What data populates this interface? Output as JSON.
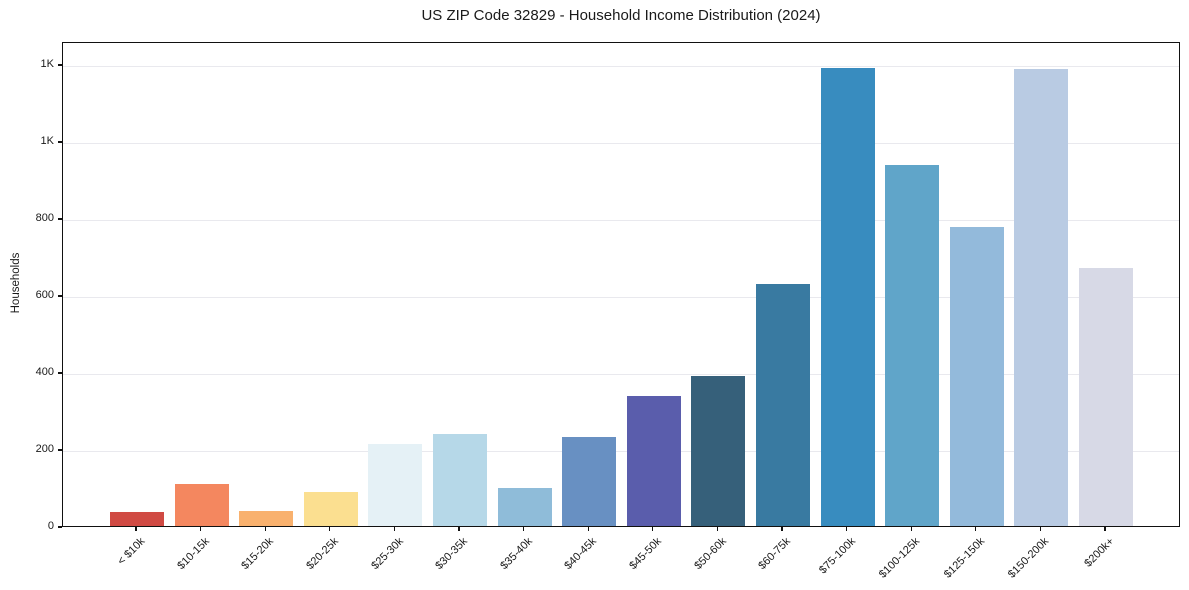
{
  "chart_data": {
    "type": "bar",
    "title": "US ZIP Code 32829 - Household Income Distribution (2024)",
    "xlabel": "",
    "ylabel": "Households",
    "ylim": [
      0,
      1260
    ],
    "grid": "horizontal",
    "grid_color": "#e9e9ee",
    "background": "#ffffff",
    "legend": "none",
    "categories": [
      "< $10k",
      "$10-15k",
      "$15-20k",
      "$20-25k",
      "$25-30k",
      "$30-35k",
      "$35-40k",
      "$40-45k",
      "$45-50k",
      "$50-60k",
      "$60-75k",
      "$75-100k",
      "$100-125k",
      "$125-150k",
      "$150-200k",
      "$200k+"
    ],
    "values": [
      37,
      108,
      39,
      88,
      213,
      238,
      99,
      230,
      339,
      389,
      628,
      1190,
      937,
      776,
      1188,
      670
    ],
    "bar_colors": [
      "#d04a43",
      "#f4875f",
      "#f9b16e",
      "#fbdf90",
      "#e5f1f6",
      "#b6d8e8",
      "#8fbcd9",
      "#6890c2",
      "#5a5dac",
      "#36607a",
      "#397aa1",
      "#388cbf",
      "#60a5c9",
      "#93badb",
      "#b9cbe3",
      "#d7d9e6"
    ],
    "yticks": [
      {
        "value": 0,
        "label": "0"
      },
      {
        "value": 200,
        "label": "200"
      },
      {
        "value": 400,
        "label": "400"
      },
      {
        "value": 600,
        "label": "600"
      },
      {
        "value": 800,
        "label": "800"
      },
      {
        "value": 1000,
        "label": "1K"
      },
      {
        "value": 1200,
        "label": "1K"
      }
    ]
  }
}
